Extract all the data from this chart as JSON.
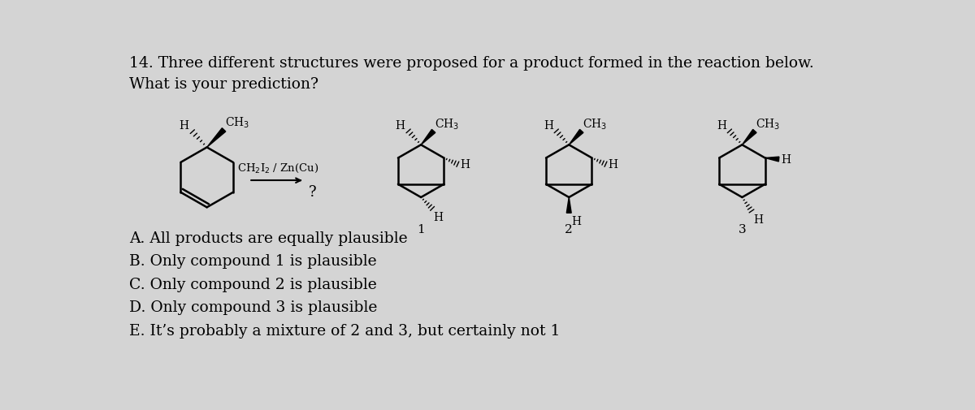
{
  "title_line1": "14. Three different structures were proposed for a product formed in the reaction below.",
  "title_line2": "What is your prediction?",
  "bg_color": "#d4d4d4",
  "text_color": "#000000",
  "choices": [
    "A. All products are equally plausible",
    "B. Only compound 1 is plausible",
    "C. Only compound 2 is plausible",
    "D. Only compound 3 is plausible",
    "E. It’s probably a mixture of 2 and 3, but certainly not 1"
  ],
  "font_size_title": 13.5,
  "font_size_choices": 13.5
}
